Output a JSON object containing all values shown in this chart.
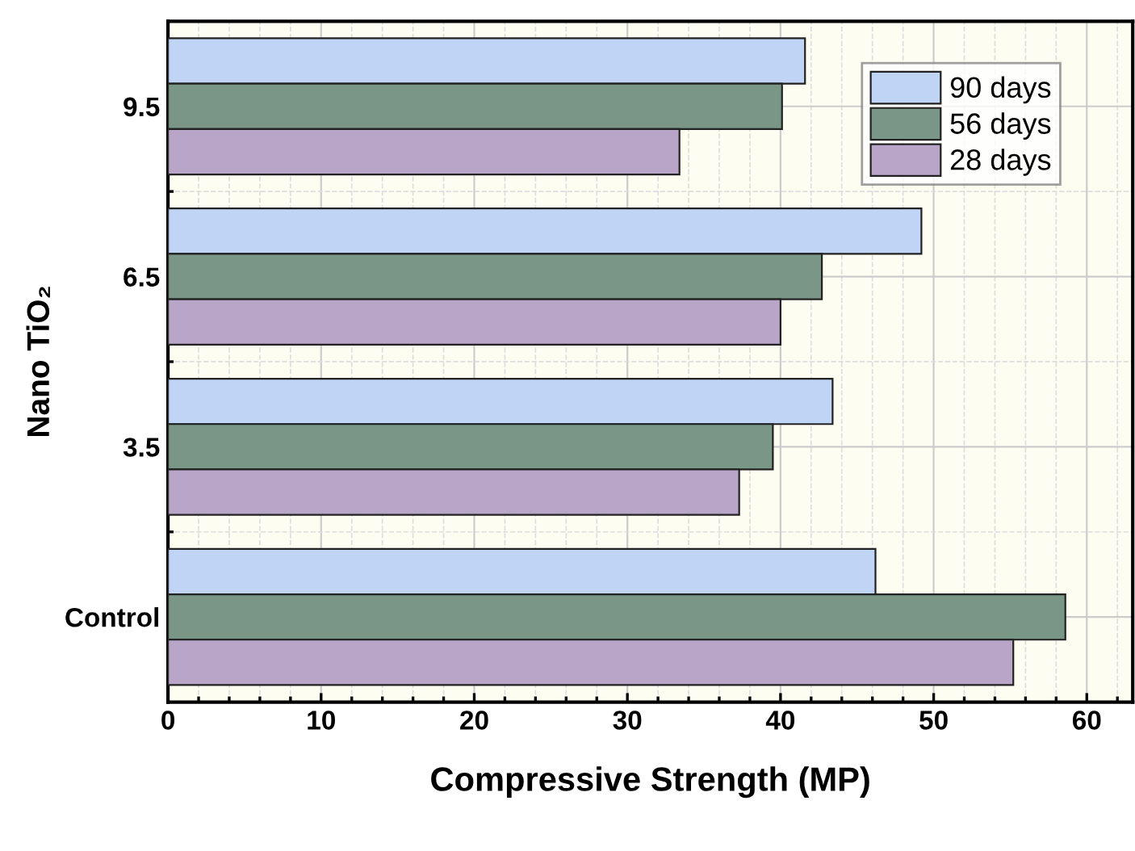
{
  "chart_data": {
    "type": "bar",
    "orientation": "horizontal",
    "xlabel": "Compressive Strength (MP)",
    "ylabel": "Nano TiO₂",
    "categories": [
      "9.5",
      "6.5",
      "3.5",
      "Control"
    ],
    "series": [
      {
        "name": "90 days",
        "color": "#c0d4f5",
        "values": [
          41.6,
          49.2,
          43.4,
          46.2
        ]
      },
      {
        "name": "56 days",
        "color": "#7a9686",
        "values": [
          40.1,
          42.7,
          39.5,
          58.6
        ]
      },
      {
        "name": "28 days",
        "color": "#b9a5c8",
        "values": [
          33.4,
          40.0,
          37.3,
          55.2
        ]
      }
    ],
    "xlim": [
      0,
      63
    ],
    "xticks": [
      0,
      10,
      20,
      30,
      40,
      50,
      60
    ],
    "grid": true,
    "legend": "top right"
  }
}
